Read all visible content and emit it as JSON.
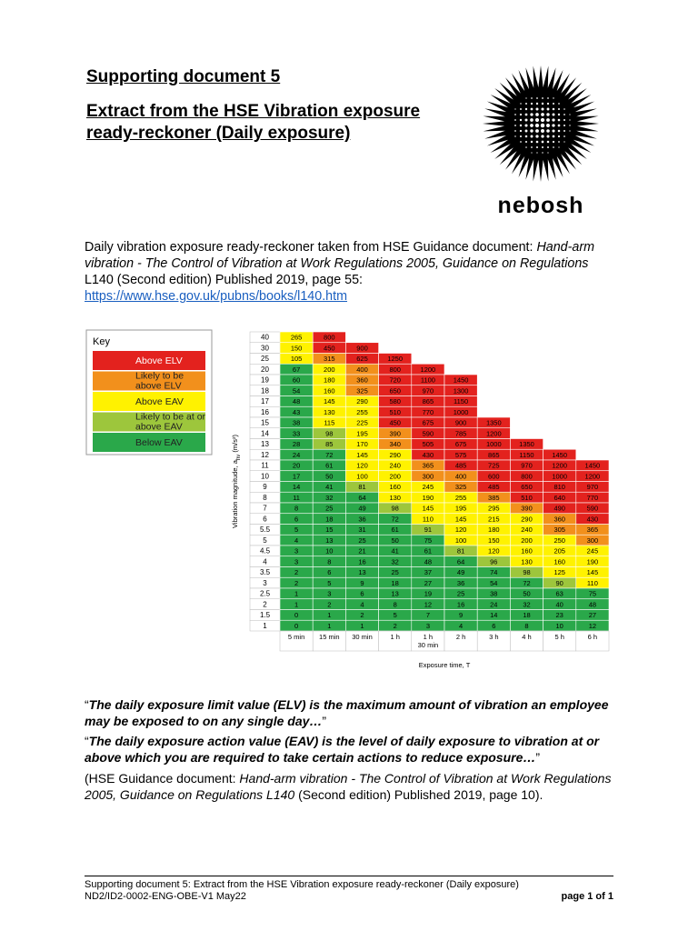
{
  "header": {
    "title": "Supporting document 5",
    "subtitle_lines": [
      "Extract from the HSE Vibration exposure",
      "ready-reckoner (Daily exposure)"
    ],
    "logo_text": "nebosh"
  },
  "intro": {
    "text": "Daily vibration exposure ready-reckoner taken from HSE Guidance document: ",
    "italic": "Hand-arm vibration - The Control of Vibration at Work Regulations 2005, Guidance on Regulations",
    "rest": " L140 (Second edition) Published 2019, page 55:",
    "link": "https://www.hse.gov.uk/pubns/books/l140.htm"
  },
  "key": {
    "title": "Key",
    "items": [
      {
        "label": "Above ELV",
        "color": "#e3221e"
      },
      {
        "label": "Likely to be above ELV",
        "color": "#f2901c"
      },
      {
        "label": "Above EAV",
        "color": "#fff200"
      },
      {
        "label": "Likely to be at or above EAV",
        "color": "#9dc63c"
      },
      {
        "label": "Below EAV",
        "color": "#2aa84a"
      }
    ]
  },
  "table": {
    "y_label": [
      "Vibration magnitude, a",
      "hv",
      " (m/s²)"
    ],
    "x_label": "Exposure time, T",
    "columns": [
      [
        "5 min"
      ],
      [
        "15 min"
      ],
      [
        "30 min"
      ],
      [
        "1 h"
      ],
      [
        "1 h",
        "30 min"
      ],
      [
        "2 h"
      ],
      [
        "3 h"
      ],
      [
        "4 h"
      ],
      [
        "5 h"
      ],
      [
        "6 h"
      ]
    ],
    "rows": [
      {
        "magnitude": 40,
        "values": [
          265,
          800
        ]
      },
      {
        "magnitude": 30,
        "values": [
          150,
          450,
          900
        ]
      },
      {
        "magnitude": 25,
        "values": [
          105,
          315,
          625,
          1250
        ]
      },
      {
        "magnitude": 20,
        "values": [
          67,
          200,
          400,
          800,
          1200
        ]
      },
      {
        "magnitude": 19,
        "values": [
          60,
          180,
          360,
          720,
          1100,
          1450
        ]
      },
      {
        "magnitude": 18,
        "values": [
          54,
          160,
          325,
          650,
          970,
          1300
        ]
      },
      {
        "magnitude": 17,
        "values": [
          48,
          145,
          290,
          580,
          865,
          1150
        ]
      },
      {
        "magnitude": 16,
        "values": [
          43,
          130,
          255,
          510,
          770,
          1000
        ]
      },
      {
        "magnitude": 15,
        "values": [
          38,
          115,
          225,
          450,
          675,
          900,
          1350
        ]
      },
      {
        "magnitude": 14,
        "values": [
          33,
          98,
          195,
          390,
          590,
          785,
          1200
        ]
      },
      {
        "magnitude": 13,
        "values": [
          28,
          85,
          170,
          340,
          505,
          675,
          1000,
          1350
        ]
      },
      {
        "magnitude": 12,
        "values": [
          24,
          72,
          145,
          290,
          430,
          575,
          865,
          1150,
          1450
        ]
      },
      {
        "magnitude": 11,
        "values": [
          20,
          61,
          120,
          240,
          365,
          485,
          725,
          970,
          1200,
          1450
        ]
      },
      {
        "magnitude": 10,
        "values": [
          17,
          50,
          100,
          200,
          300,
          400,
          600,
          800,
          1000,
          1200
        ]
      },
      {
        "magnitude": 9,
        "values": [
          14,
          41,
          81,
          160,
          245,
          325,
          485,
          650,
          810,
          970
        ]
      },
      {
        "magnitude": 8,
        "values": [
          11,
          32,
          64,
          130,
          190,
          255,
          385,
          510,
          640,
          770
        ]
      },
      {
        "magnitude": 7,
        "values": [
          8,
          25,
          49,
          98,
          145,
          195,
          295,
          390,
          490,
          590
        ]
      },
      {
        "magnitude": 6,
        "values": [
          6,
          18,
          36,
          72,
          110,
          145,
          215,
          290,
          360,
          430
        ]
      },
      {
        "magnitude": 5.5,
        "values": [
          5,
          15,
          31,
          61,
          91,
          120,
          180,
          240,
          305,
          365
        ]
      },
      {
        "magnitude": 5,
        "values": [
          4,
          13,
          25,
          50,
          75,
          100,
          150,
          200,
          250,
          300
        ]
      },
      {
        "magnitude": 4.5,
        "values": [
          3,
          10,
          21,
          41,
          61,
          81,
          120,
          160,
          205,
          245
        ]
      },
      {
        "magnitude": 4,
        "values": [
          3,
          8,
          16,
          32,
          48,
          64,
          96,
          130,
          160,
          190
        ]
      },
      {
        "magnitude": 3.5,
        "values": [
          2,
          6,
          13,
          25,
          37,
          49,
          74,
          98,
          125,
          145
        ]
      },
      {
        "magnitude": 3,
        "values": [
          2,
          5,
          9,
          18,
          27,
          36,
          54,
          72,
          90,
          110
        ]
      },
      {
        "magnitude": 2.5,
        "values": [
          1,
          3,
          6,
          13,
          19,
          25,
          38,
          50,
          63,
          75
        ]
      },
      {
        "magnitude": 2,
        "values": [
          1,
          2,
          4,
          8,
          12,
          16,
          24,
          32,
          40,
          48
        ]
      },
      {
        "magnitude": 1.5,
        "values": [
          0,
          1,
          2,
          5,
          7,
          9,
          14,
          18,
          23,
          27
        ]
      },
      {
        "magnitude": 1,
        "values": [
          0,
          1,
          1,
          2,
          3,
          4,
          6,
          8,
          10,
          12
        ]
      }
    ]
  },
  "quotes": [
    {
      "open": "“",
      "bold": "The daily exposure limit value (ELV) is the maximum amount of vibration an employee may be exposed to on any single day…",
      "close": "”"
    },
    {
      "open": "“",
      "bold": "The daily exposure action value (EAV) is the level of daily exposure to vibration at or above which you are required to take certain actions to reduce exposure…",
      "close": "”"
    }
  ],
  "source": {
    "before": "(HSE Guidance document: ",
    "italic": "Hand-arm vibration - The Control of Vibration at Work Regulations 2005, Guidance on Regulations L140",
    "after": " (Second edition) Published 2019, page 10)."
  },
  "footer": {
    "line1": "Supporting document 5: Extract from the HSE Vibration exposure ready-reckoner (Daily exposure)",
    "line2": "ND2/ID2-0002-ENG-OBE-V1 May22",
    "page": "page 1 of 1"
  }
}
